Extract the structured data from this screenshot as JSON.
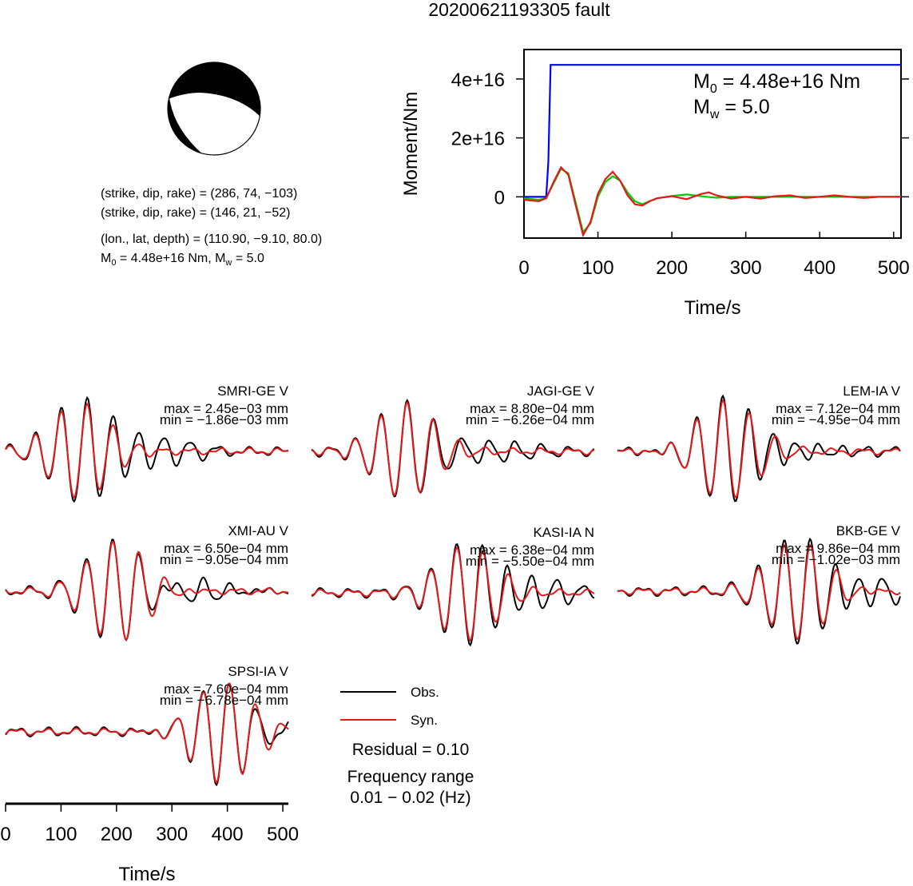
{
  "title": "20200621193305 fault",
  "focal_mechanism": {
    "plane1": "(strike, dip, rake) = (286, 74, −103)",
    "plane2": "(strike, dip, rake) = (146, 21, −52)",
    "location": "(lon., lat, depth) = (110.90, −9.10, 80.0)",
    "moment_prefix": "M",
    "moment_sub": "0",
    "moment_mid": " = 4.48e+16 Nm, M",
    "moment_sub2": "w",
    "moment_suffix": " = 5.0"
  },
  "legend": {
    "obs_label": "Obs.",
    "syn_label": "Syn.",
    "obs_color": "#000000",
    "syn_color": "#e41a1c",
    "residual": "Residual = 0.10",
    "freq_title": "Frequency range",
    "freq_value": "0.01 − 0.02 (Hz)"
  },
  "chart_data": [
    {
      "type": "line",
      "xlabel": "Time/s",
      "ylabel": "Moment/Nm",
      "xlim": [
        0,
        510
      ],
      "ylim": [
        -1.4e+16,
        5e+16
      ],
      "xticks": [
        0,
        100,
        200,
        300,
        400,
        500
      ],
      "xtick_labels": [
        "0",
        "100",
        "200",
        "300",
        "400",
        "500"
      ],
      "yticks": [
        0,
        2e+16,
        4e+16
      ],
      "ytick_labels": [
        "0",
        "2e+16",
        "4e+16"
      ],
      "annotation": {
        "m0_prefix": "M",
        "m0_sub": "0",
        "m0_suffix": " = 4.48e+16 Nm",
        "mw_prefix": "M",
        "mw_sub": "w",
        "mw_suffix": " = 5.0"
      },
      "series": [
        {
          "color": "#0000ff",
          "x": [
            0,
            30,
            33,
            36,
            510
          ],
          "y": [
            0,
            0,
            1.2e+16,
            4.48e+16,
            4.48e+16
          ]
        },
        {
          "color": "#00cc00",
          "x": [
            0,
            20,
            30,
            40,
            50,
            60,
            70,
            80,
            90,
            100,
            110,
            120,
            130,
            140,
            150,
            160,
            170,
            180,
            200,
            220,
            240,
            260,
            280,
            300,
            340,
            380,
            420,
            460,
            510
          ],
          "y": [
            -500000000000000.0,
            -1000000000000000.0,
            -500000000000000.0,
            4500000000000000.0,
            9500000000000000.0,
            8000000000000000.0,
            -2000000000000000.0,
            -1.2e+16,
            -9000000000000000.0,
            0.0,
            5000000000000000.0,
            7000000000000000.0,
            5500000000000000.0,
            1500000000000000.0,
            -1500000000000000.0,
            -2500000000000000.0,
            -1500000000000000.0,
            -500000000000000.0,
            300000000000000.0,
            800000000000000.0,
            200000000000000.0,
            -300000000000000.0,
            0.0,
            0.0,
            0.0,
            0.0,
            0.0,
            0.0,
            0.0
          ]
        },
        {
          "color": "#e41a1c",
          "x": [
            0,
            20,
            30,
            40,
            50,
            60,
            70,
            80,
            90,
            100,
            110,
            120,
            130,
            140,
            150,
            160,
            170,
            180,
            200,
            220,
            240,
            250,
            260,
            280,
            300,
            320,
            340,
            360,
            380,
            400,
            420,
            440,
            460,
            480,
            510
          ],
          "y": [
            -1000000000000000.0,
            -1500000000000000.0,
            -500000000000000.0,
            5000000000000000.0,
            1e+16,
            7500000000000000.0,
            -3000000000000000.0,
            -1.3e+16,
            -8500000000000000.0,
            1000000000000000.0,
            6000000000000000.0,
            8500000000000000.0,
            5500000000000000.0,
            500000000000000.0,
            -2500000000000000.0,
            -3000000000000000.0,
            -1500000000000000.0,
            -500000000000000.0,
            200000000000000.0,
            -800000000000000.0,
            1000000000000000.0,
            1500000000000000.0,
            500000000000000.0,
            -600000000000000.0,
            0.0,
            -600000000000000.0,
            200000000000000.0,
            500000000000000.0,
            -400000000000000.0,
            0.0,
            500000000000000.0,
            0.0,
            -400000000000000.0,
            0.0,
            0.0
          ]
        }
      ]
    },
    {
      "type": "line",
      "xlabel": "Time/s",
      "xlim": [
        0,
        510
      ],
      "xticks": [
        0,
        100,
        200,
        300,
        400,
        500
      ],
      "xtick_labels": [
        "0",
        "100",
        "200",
        "300",
        "400",
        "500"
      ],
      "panels": [
        {
          "station": "SMRI-GE V",
          "max": "max = 2.45e−03 mm",
          "min": "min = −1.86e−03 mm"
        },
        {
          "station": "JAGI-GE V",
          "max": "max = 8.80e−04 mm",
          "min": "min = −6.26e−04 mm"
        },
        {
          "station": "LEM-IA V",
          "max": "max = 7.12e−04 mm",
          "min": "min = −4.95e−04 mm"
        },
        {
          "station": "XMI-AU V",
          "max": "max = 6.50e−04 mm",
          "min": "min = −9.05e−04 mm"
        },
        {
          "station": "KASI-IA N",
          "max": "max = 6.38e−04 mm",
          "min": "min = −5.50e−04 mm"
        },
        {
          "station": "BKB-GE V",
          "max": "max = 9.86e−04 mm",
          "min": "min = −1.02e−03 mm"
        },
        {
          "station": "SPSI-IA V",
          "max": "max = 7.60e−04 mm",
          "min": "min = −6.78e−04 mm"
        }
      ]
    }
  ]
}
